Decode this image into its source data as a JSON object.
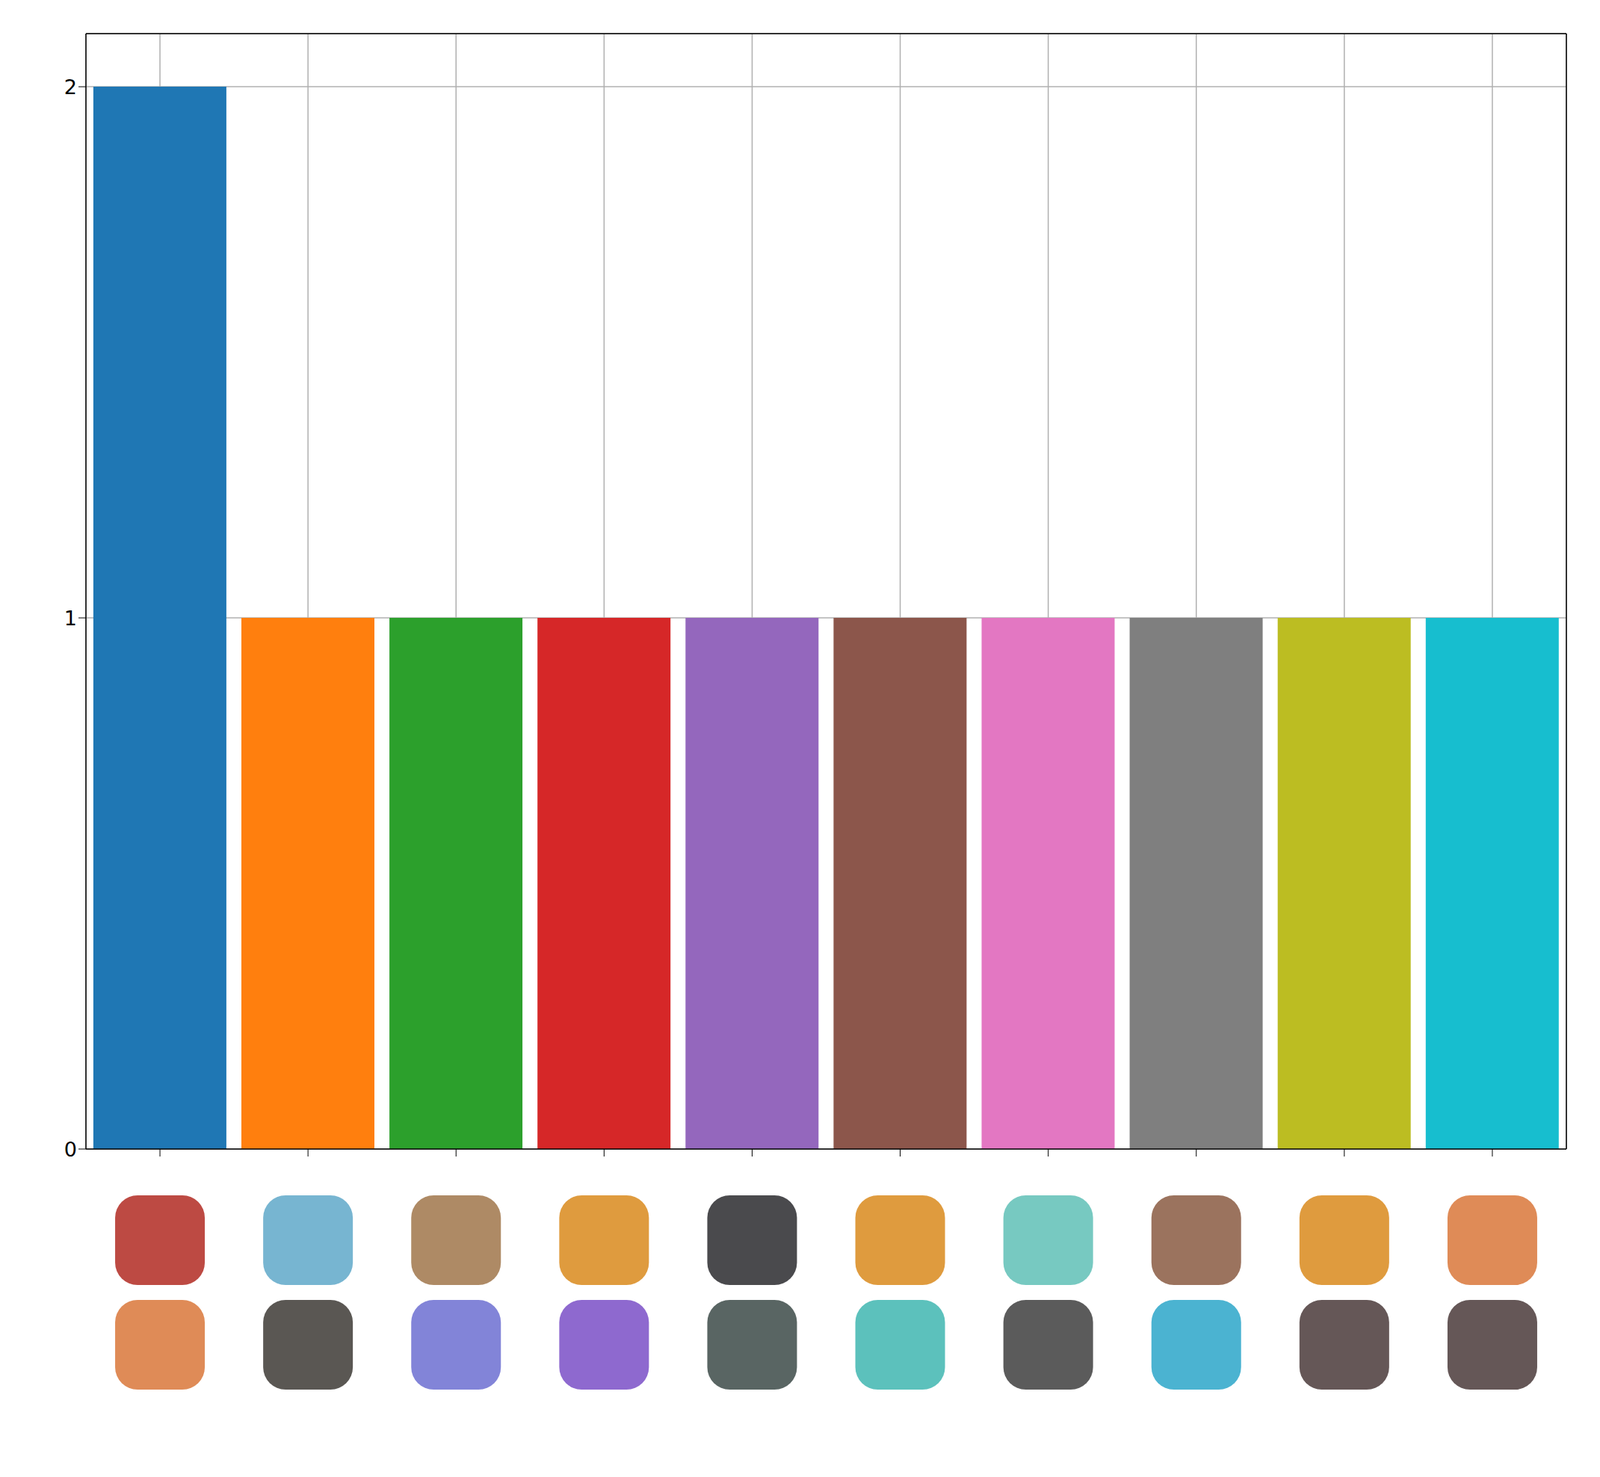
{
  "chart_data": {
    "type": "bar",
    "categories": [
      null,
      null,
      null,
      null,
      null,
      null,
      null,
      null,
      null,
      null
    ],
    "values": [
      2,
      1,
      1,
      1,
      1,
      1,
      1,
      1,
      1,
      1
    ],
    "colors": [
      "#1f77b4",
      "#ff7f0e",
      "#2ca02c",
      "#d62728",
      "#9467bd",
      "#8c564b",
      "#e377c2",
      "#7f7f7f",
      "#bcbd22",
      "#17becf"
    ],
    "ylim": [
      0,
      2.1
    ],
    "yticks": [
      0,
      1,
      2
    ],
    "grid": true,
    "tick_labels": "y"
  }
}
